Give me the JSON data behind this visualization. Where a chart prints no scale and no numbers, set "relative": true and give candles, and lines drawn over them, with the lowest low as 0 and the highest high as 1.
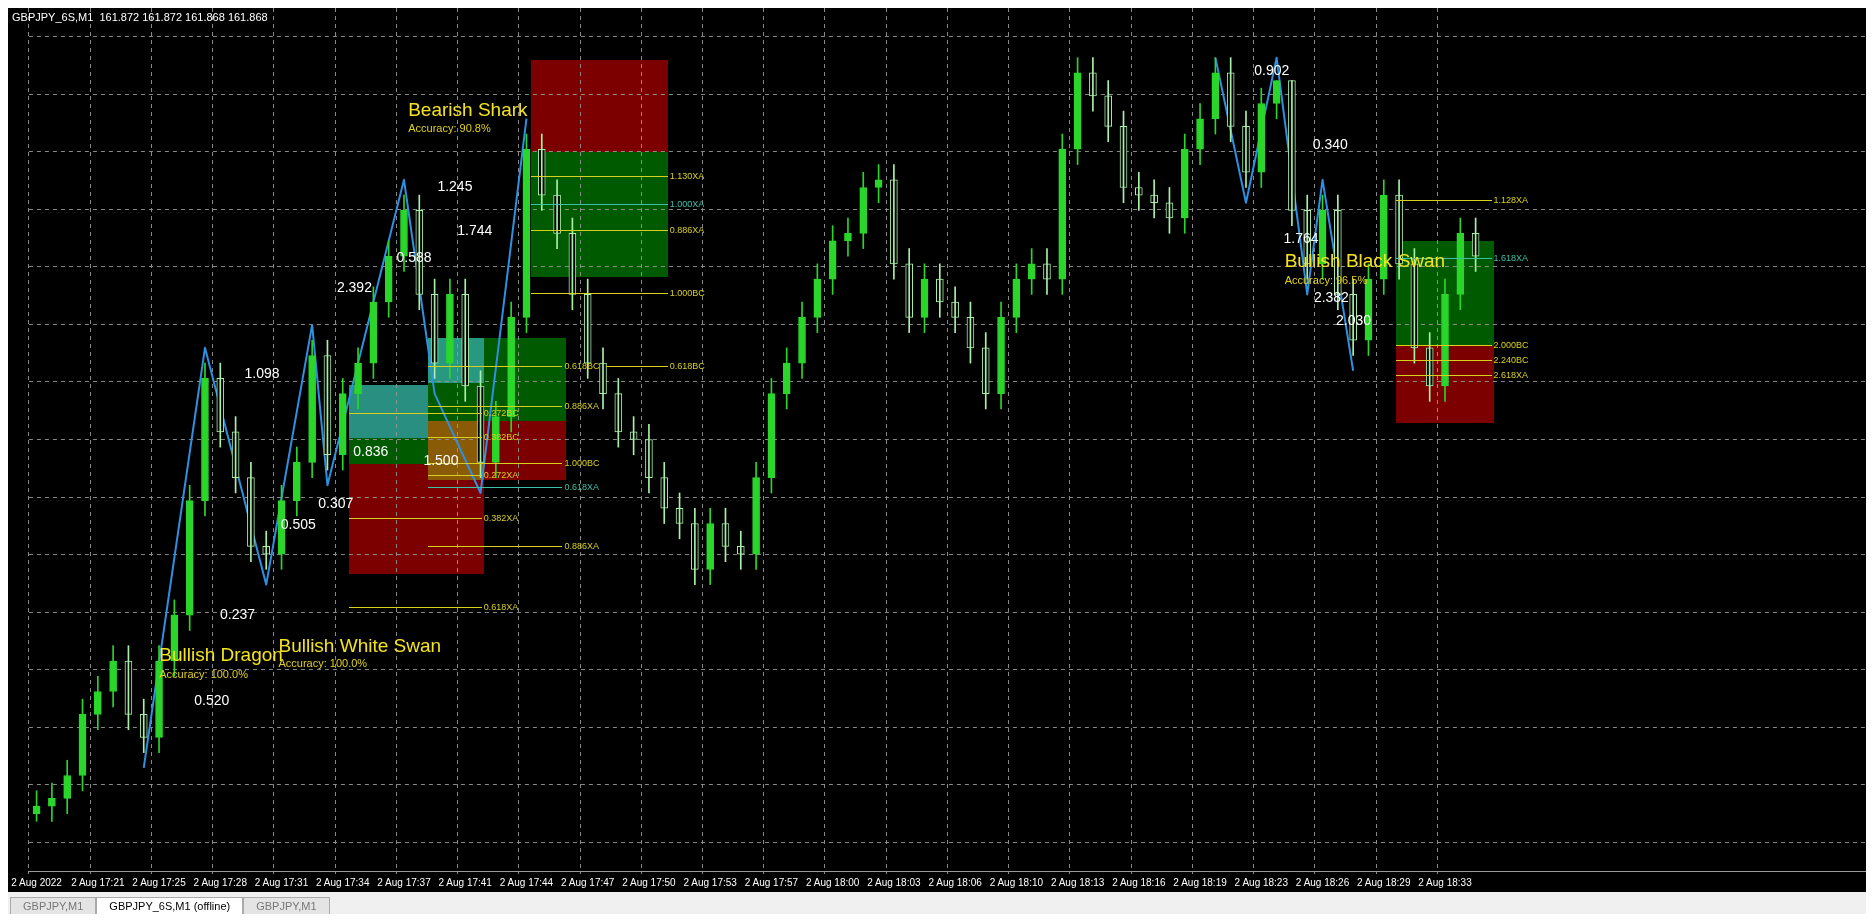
{
  "chart_data": {
    "type": "candlestick",
    "relative": true,
    "grid": true,
    "colors": [
      "#2ad62a",
      "#2ad62a",
      "#2ad62a",
      "#2ad62a",
      "#2ad62a",
      "#2ad62a",
      "#a8f0a8",
      "#a8f0a8",
      "#2ad62a",
      "#2ad62a",
      "#2ad62a",
      "#2ad62a",
      "#a8f0a8",
      "#a8f0a8",
      "#a8f0a8",
      "#a8f0a8",
      "#2ad62a",
      "#2ad62a",
      "#2ad62a",
      "#a8f0a8",
      "#2ad62a",
      "#2ad62a",
      "#2ad62a",
      "#2ad62a",
      "#2ad62a",
      "#a8f0a8",
      "#a8f0a8",
      "#2ad62a",
      "#a8f0a8",
      "#a8f0a8",
      "#2ad62a",
      "#2ad62a",
      "#2ad62a",
      "#a8f0a8",
      "#a8f0a8",
      "#a8f0a8",
      "#a8f0a8",
      "#a8f0a8",
      "#a8f0a8",
      "#a8f0a8",
      "#a8f0a8",
      "#a8f0a8",
      "#a8f0a8",
      "#a8f0a8",
      "#2ad62a",
      "#a8f0a8",
      "#a8f0a8",
      "#2ad62a",
      "#2ad62a",
      "#2ad62a",
      "#2ad62a",
      "#2ad62a",
      "#2ad62a",
      "#2ad62a",
      "#2ad62a",
      "#2ad62a",
      "#a8f0a8",
      "#a8f0a8",
      "#2ad62a",
      "#a8f0a8",
      "#a8f0a8",
      "#a8f0a8",
      "#a8f0a8",
      "#2ad62a",
      "#2ad62a",
      "#2ad62a",
      "#a8f0a8",
      "#2ad62a",
      "#2ad62a",
      "#a8f0a8",
      "#a8f0a8",
      "#a8f0a8",
      "#a8f0a8",
      "#a8f0a8",
      "#a8f0a8",
      "#2ad62a",
      "#2ad62a",
      "#2ad62a",
      "#a8f0a8",
      "#a8f0a8",
      "#2ad62a",
      "#2ad62a",
      "#a8f0a8",
      "#a8f0a8",
      "#2ad62a",
      "#a8f0a8",
      "#a8f0a8",
      "#2ad62a",
      "#2ad62a",
      "#a8f0a8",
      "#a8f0a8",
      "#a8f0a8",
      "#2ad62a",
      "#2ad62a",
      "#a8f0a8",
      null,
      null,
      null,
      null,
      null,
      null,
      null,
      null,
      null,
      null,
      null,
      null,
      null,
      null,
      null,
      null,
      null,
      null,
      null,
      null,
      null,
      null,
      null,
      null,
      null
    ],
    "title": "GBPJPY_6S,M1  161.872 161.872 161.868 161.868",
    "categories": [
      "2 Aug 2022",
      null,
      null,
      null,
      "2 Aug 17:21",
      null,
      null,
      null,
      "2 Aug 17:25",
      null,
      null,
      null,
      "2 Aug 17:28",
      null,
      null,
      null,
      "2 Aug 17:31",
      null,
      null,
      null,
      "2 Aug 17:34",
      null,
      null,
      null,
      "2 Aug 17:37",
      null,
      null,
      null,
      "2 Aug 17:41",
      null,
      null,
      null,
      "2 Aug 17:44",
      null,
      null,
      null,
      "2 Aug 17:47",
      null,
      null,
      null,
      "2 Aug 17:50",
      null,
      null,
      null,
      "2 Aug 17:53",
      null,
      null,
      null,
      "2 Aug 17:57",
      null,
      null,
      null,
      "2 Aug 18:00",
      null,
      null,
      null,
      "2 Aug 18:03",
      null,
      null,
      null,
      "2 Aug 18:06",
      null,
      null,
      null,
      "2 Aug 18:10",
      null,
      null,
      null,
      "2 Aug 18:13",
      null,
      null,
      null,
      "2 Aug 18:16",
      null,
      null,
      null,
      "2 Aug 18:19",
      null,
      null,
      null,
      "2 Aug 18:23",
      null,
      null,
      null,
      "2 Aug 18:26",
      null,
      null,
      null,
      "2 Aug 18:29",
      null,
      null,
      null,
      "2 Aug 18:33",
      null,
      null,
      null,
      null,
      null,
      null,
      null,
      null,
      null,
      null,
      null,
      null,
      null,
      null,
      null,
      null,
      null,
      null,
      null,
      null,
      null,
      null,
      null,
      null,
      null,
      null,
      null
    ],
    "ohlc": [
      [
        0.01,
        0.04,
        0,
        0.02
      ],
      [
        0.02,
        0.05,
        0,
        0.03
      ],
      [
        0.03,
        0.08,
        0.01,
        0.06
      ],
      [
        0.06,
        0.16,
        0.04,
        0.14
      ],
      [
        0.14,
        0.19,
        0.12,
        0.17
      ],
      [
        0.17,
        0.23,
        0.15,
        0.21
      ],
      [
        0.21,
        0.23,
        0.12,
        0.14
      ],
      [
        0.14,
        0.16,
        0.09,
        0.11
      ],
      [
        0.11,
        0.23,
        0.09,
        0.21
      ],
      [
        0.21,
        0.29,
        0.19,
        0.27
      ],
      [
        0.27,
        0.44,
        0.25,
        0.42
      ],
      [
        0.42,
        0.6,
        0.4,
        0.58
      ],
      [
        0.58,
        0.6,
        0.49,
        0.51
      ],
      [
        0.51,
        0.53,
        0.43,
        0.45
      ],
      [
        0.45,
        0.47,
        0.34,
        0.36
      ],
      [
        0.36,
        0.38,
        0.33,
        0.35
      ],
      [
        0.35,
        0.44,
        0.33,
        0.42
      ],
      [
        0.42,
        0.49,
        0.4,
        0.47
      ],
      [
        0.47,
        0.63,
        0.45,
        0.61
      ],
      [
        0.61,
        0.63,
        0.46,
        0.48
      ],
      [
        0.48,
        0.58,
        0.46,
        0.56
      ],
      [
        0.56,
        0.62,
        0.54,
        0.6
      ],
      [
        0.6,
        0.7,
        0.58,
        0.68
      ],
      [
        0.68,
        0.76,
        0.66,
        0.74
      ],
      [
        0.74,
        0.82,
        0.72,
        0.8
      ],
      [
        0.8,
        0.82,
        0.67,
        0.69
      ],
      [
        0.69,
        0.71,
        0.58,
        0.6
      ],
      [
        0.6,
        0.71,
        0.58,
        0.69
      ],
      [
        0.69,
        0.71,
        0.55,
        0.57
      ],
      [
        0.57,
        0.59,
        0.45,
        0.47
      ],
      [
        0.47,
        0.55,
        0.45,
        0.53
      ],
      [
        0.53,
        0.68,
        0.51,
        0.66
      ],
      [
        0.66,
        0.9,
        0.64,
        0.88
      ],
      [
        0.88,
        0.9,
        0.8,
        0.82
      ],
      [
        0.82,
        0.84,
        0.75,
        0.77
      ],
      [
        0.77,
        0.79,
        0.67,
        0.69
      ],
      [
        0.69,
        0.71,
        0.58,
        0.6
      ],
      [
        0.6,
        0.62,
        0.54,
        0.56
      ],
      [
        0.56,
        0.58,
        0.49,
        0.51
      ],
      [
        0.51,
        0.53,
        0.48,
        0.5
      ],
      [
        0.5,
        0.52,
        0.43,
        0.45
      ],
      [
        0.45,
        0.47,
        0.39,
        0.41
      ],
      [
        0.41,
        0.43,
        0.37,
        0.39
      ],
      [
        0.39,
        0.41,
        0.31,
        0.33
      ],
      [
        0.33,
        0.41,
        0.31,
        0.39
      ],
      [
        0.39,
        0.41,
        0.34,
        0.36
      ],
      [
        0.36,
        0.38,
        0.33,
        0.35
      ],
      [
        0.35,
        0.47,
        0.33,
        0.45
      ],
      [
        0.45,
        0.58,
        0.43,
        0.56
      ],
      [
        0.56,
        0.62,
        0.54,
        0.6
      ],
      [
        0.6,
        0.68,
        0.58,
        0.66
      ],
      [
        0.66,
        0.73,
        0.64,
        0.71
      ],
      [
        0.71,
        0.78,
        0.69,
        0.76
      ],
      [
        0.76,
        0.79,
        0.74,
        0.77
      ],
      [
        0.77,
        0.85,
        0.75,
        0.83
      ],
      [
        0.83,
        0.86,
        0.81,
        0.84
      ],
      [
        0.84,
        0.86,
        0.71,
        0.73
      ],
      [
        0.73,
        0.75,
        0.64,
        0.66
      ],
      [
        0.66,
        0.73,
        0.64,
        0.71
      ],
      [
        0.71,
        0.73,
        0.66,
        0.68
      ],
      [
        0.68,
        0.7,
        0.64,
        0.66
      ],
      [
        0.66,
        0.68,
        0.6,
        0.62
      ],
      [
        0.62,
        0.64,
        0.54,
        0.56
      ],
      [
        0.56,
        0.68,
        0.54,
        0.66
      ],
      [
        0.66,
        0.73,
        0.64,
        0.71
      ],
      [
        0.71,
        0.75,
        0.69,
        0.73
      ],
      [
        0.73,
        0.75,
        0.69,
        0.71
      ],
      [
        0.71,
        0.9,
        0.69,
        0.88
      ],
      [
        0.88,
        1,
        0.86,
        0.98
      ],
      [
        0.98,
        1,
        0.93,
        0.95
      ],
      [
        0.95,
        0.97,
        0.89,
        0.91
      ],
      [
        0.91,
        0.93,
        0.81,
        0.83
      ],
      [
        0.83,
        0.85,
        0.8,
        0.82
      ],
      [
        0.82,
        0.84,
        0.79,
        0.81
      ],
      [
        0.81,
        0.83,
        0.77,
        0.79
      ],
      [
        0.79,
        0.9,
        0.77,
        0.88
      ],
      [
        0.88,
        0.94,
        0.86,
        0.92
      ],
      [
        0.92,
        1,
        0.9,
        0.98
      ],
      [
        0.98,
        1,
        0.89,
        0.91
      ],
      [
        0.91,
        0.93,
        0.83,
        0.85
      ],
      [
        0.85,
        0.96,
        0.83,
        0.94
      ],
      [
        0.94,
        0.97,
        0.92,
        0.97
      ],
      [
        0.97,
        0.97,
        0.78,
        0.8
      ],
      [
        0.8,
        0.82,
        0.71,
        0.73
      ],
      [
        0.73,
        0.82,
        0.71,
        0.8
      ],
      [
        0.8,
        0.82,
        0.67,
        0.69
      ],
      [
        0.69,
        0.71,
        0.61,
        0.63
      ],
      [
        0.63,
        0.73,
        0.61,
        0.71
      ],
      [
        0.71,
        0.84,
        0.69,
        0.82
      ],
      [
        0.82,
        0.84,
        0.71,
        0.73
      ],
      [
        0.73,
        0.75,
        0.6,
        0.62
      ],
      [
        0.62,
        0.64,
        0.55,
        0.57
      ],
      [
        0.57,
        0.71,
        0.55,
        0.69
      ],
      [
        0.69,
        0.79,
        0.67,
        0.77
      ],
      [
        0.77,
        0.79,
        0.72,
        0.74
      ],
      null,
      null,
      null,
      null,
      null,
      null,
      null,
      null,
      null,
      null,
      null,
      null,
      null,
      null,
      null,
      null,
      null,
      null,
      null,
      null,
      null,
      null,
      null,
      null,
      null
    ],
    "series": [
      {
        "type": "line",
        "color": "#2f8fe0",
        "values": [
          null,
          null,
          null,
          null,
          null,
          null,
          null,
          0.07,
          null,
          null,
          null,
          0.62,
          null,
          null,
          null,
          0.31,
          null,
          null,
          0.65,
          0.44,
          null,
          null,
          null,
          null,
          0.84,
          null,
          0.56,
          null,
          null,
          0.43,
          null,
          null,
          0.92,
          null,
          null,
          null,
          null,
          null,
          null,
          null,
          null,
          null,
          null,
          null,
          null,
          null,
          null,
          null,
          null,
          null,
          null,
          null,
          null,
          null,
          null,
          null,
          null,
          null,
          null,
          null,
          null,
          null,
          null,
          null,
          null,
          null,
          null,
          null,
          null,
          null,
          null,
          null,
          null,
          null,
          null,
          null,
          null,
          null,
          null,
          null,
          null,
          null,
          null,
          null,
          null,
          null,
          null,
          null,
          null,
          null,
          null,
          null,
          null,
          null,
          null,
          null,
          null,
          null,
          null,
          null,
          null,
          null,
          null,
          null,
          null,
          null,
          null,
          null,
          null,
          null,
          null,
          null,
          null,
          null,
          null,
          null,
          null,
          null,
          null,
          null
        ]
      },
      {
        "type": "line",
        "color": "#2f8fe0",
        "values": [
          null,
          null,
          null,
          null,
          null,
          null,
          null,
          null,
          null,
          null,
          null,
          null,
          null,
          null,
          null,
          null,
          null,
          null,
          null,
          null,
          null,
          null,
          null,
          null,
          null,
          null,
          null,
          null,
          null,
          null,
          null,
          null,
          null,
          null,
          null,
          null,
          null,
          null,
          null,
          null,
          null,
          null,
          null,
          null,
          null,
          null,
          null,
          null,
          null,
          null,
          null,
          null,
          null,
          null,
          null,
          null,
          null,
          null,
          null,
          null,
          null,
          null,
          null,
          null,
          null,
          null,
          null,
          null,
          null,
          null,
          null,
          null,
          null,
          null,
          null,
          null,
          null,
          1,
          null,
          0.81,
          null,
          1,
          null,
          0.69,
          0.84,
          null,
          0.59,
          null,
          null,
          null,
          null,
          null,
          null,
          null,
          null,
          null,
          null,
          null,
          null,
          null,
          null,
          null,
          null,
          null,
          null,
          null,
          null,
          null,
          null,
          null,
          null,
          null,
          null,
          null,
          null,
          null,
          null,
          null,
          null,
          null
        ]
      }
    ],
    "annotations": [
      "Bearish Shark",
      "Accuracy: 90.8%",
      "Bullish Dragon",
      "Accuracy: 100.0%",
      "Bullish White Swan",
      "Accuracy: 100.0%",
      "Bullish Black Swan",
      "Accuracy: 96.5%",
      "1.245",
      "1.744",
      "0.588",
      "2.392",
      "1.098",
      "0.836",
      "1.500",
      "0.307",
      "0.505",
      "0.237",
      "0.520",
      "0.902",
      "0.340",
      "1.764",
      "2.382",
      "2.030",
      "1.130XA",
      "1.000XA",
      "0.886XA",
      "1.000BC",
      "0.618BC",
      "0.618BC",
      "0.272BC",
      "0.382BC",
      "0.886XA",
      "1.000BC",
      "0.272XA",
      "0.618XA",
      "0.382XA",
      "0.886XA",
      "0.618XA",
      "1.128XA",
      "1.618XA",
      "2.000BC",
      "2.240BC",
      "2.618XA",
      "GBPJPY,M1",
      "GBPJPY_6S,M1 (offline)",
      "GBPJPY,M1"
    ]
  }
}
